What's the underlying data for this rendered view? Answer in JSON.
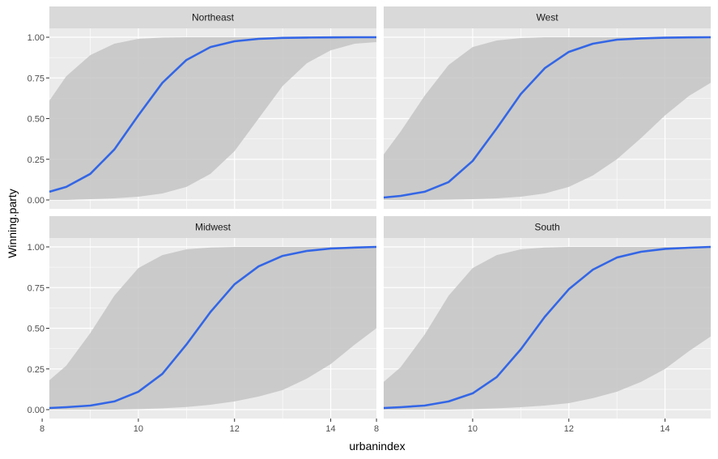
{
  "chart_data": {
    "type": "line",
    "subtype": "faceted logistic curves with confidence ribbons",
    "xlabel": "urbanindex",
    "ylabel": "Winning.party",
    "xlim": [
      8.15,
      14.95
    ],
    "ylim": [
      0,
      1
    ],
    "x_ticks": [
      8,
      10,
      12,
      14
    ],
    "y_ticks": [
      0,
      0.25,
      0.5,
      0.75,
      1
    ],
    "y_tick_labels": [
      "0.00",
      "0.25",
      "0.50",
      "0.75",
      "1.00"
    ],
    "x_tick_labels": [
      "8",
      "10",
      "12",
      "14"
    ],
    "grid": true,
    "colors": {
      "line": "#3366e6",
      "ribbon": "#c4c4c4",
      "panel_bg": "#ebebeb",
      "strip_bg": "#d9d9d9",
      "grid": "#ffffff"
    },
    "panels": [
      {
        "name": "Northeast",
        "x": [
          8.15,
          8.5,
          9,
          9.5,
          10,
          10.5,
          11,
          11.5,
          12,
          12.5,
          13,
          13.5,
          14,
          14.5,
          14.95
        ],
        "fit": [
          0.05,
          0.08,
          0.16,
          0.31,
          0.52,
          0.72,
          0.86,
          0.94,
          0.975,
          0.99,
          0.996,
          0.998,
          0.999,
          1.0,
          1.0
        ],
        "lower": [
          0.0,
          0.0,
          0.005,
          0.01,
          0.02,
          0.04,
          0.08,
          0.16,
          0.3,
          0.5,
          0.7,
          0.84,
          0.92,
          0.96,
          0.97
        ],
        "upper": [
          0.61,
          0.76,
          0.89,
          0.96,
          0.99,
          0.998,
          1.0,
          1.0,
          1.0,
          1.0,
          1.0,
          1.0,
          1.0,
          1.0,
          1.0
        ]
      },
      {
        "name": "West",
        "x": [
          8.15,
          8.5,
          9,
          9.5,
          10,
          10.5,
          11,
          11.5,
          12,
          12.5,
          13,
          13.5,
          14,
          14.5,
          14.95
        ],
        "fit": [
          0.015,
          0.025,
          0.05,
          0.11,
          0.24,
          0.44,
          0.65,
          0.81,
          0.91,
          0.96,
          0.985,
          0.993,
          0.997,
          0.999,
          1.0
        ],
        "lower": [
          0.0,
          0.0,
          0.0,
          0.002,
          0.005,
          0.01,
          0.02,
          0.04,
          0.08,
          0.15,
          0.25,
          0.38,
          0.52,
          0.64,
          0.72
        ],
        "upper": [
          0.28,
          0.42,
          0.64,
          0.83,
          0.94,
          0.98,
          0.995,
          1.0,
          1.0,
          1.0,
          1.0,
          1.0,
          1.0,
          1.0,
          1.0
        ]
      },
      {
        "name": "Midwest",
        "x": [
          8.15,
          8.5,
          9,
          9.5,
          10,
          10.5,
          11,
          11.5,
          12,
          12.5,
          13,
          13.5,
          14,
          14.5,
          14.95
        ],
        "fit": [
          0.01,
          0.015,
          0.025,
          0.05,
          0.11,
          0.22,
          0.4,
          0.6,
          0.77,
          0.88,
          0.945,
          0.975,
          0.99,
          0.996,
          1.0
        ],
        "lower": [
          0.0,
          0.0,
          0.0,
          0.0,
          0.003,
          0.008,
          0.016,
          0.03,
          0.05,
          0.08,
          0.12,
          0.19,
          0.28,
          0.4,
          0.5
        ],
        "upper": [
          0.18,
          0.27,
          0.47,
          0.7,
          0.87,
          0.95,
          0.985,
          0.996,
          1.0,
          1.0,
          1.0,
          1.0,
          1.0,
          1.0,
          1.0
        ]
      },
      {
        "name": "South",
        "x": [
          8.15,
          8.5,
          9,
          9.5,
          10,
          10.5,
          11,
          11.5,
          12,
          12.5,
          13,
          13.5,
          14,
          14.5,
          14.95
        ],
        "fit": [
          0.01,
          0.015,
          0.025,
          0.05,
          0.1,
          0.2,
          0.37,
          0.57,
          0.74,
          0.86,
          0.935,
          0.97,
          0.988,
          0.995,
          1.0
        ],
        "lower": [
          0.0,
          0.0,
          0.0,
          0.0,
          0.003,
          0.008,
          0.015,
          0.025,
          0.04,
          0.07,
          0.11,
          0.17,
          0.25,
          0.36,
          0.45
        ],
        "upper": [
          0.17,
          0.26,
          0.46,
          0.7,
          0.87,
          0.95,
          0.985,
          0.996,
          1.0,
          1.0,
          1.0,
          1.0,
          1.0,
          1.0,
          1.0
        ]
      }
    ]
  }
}
